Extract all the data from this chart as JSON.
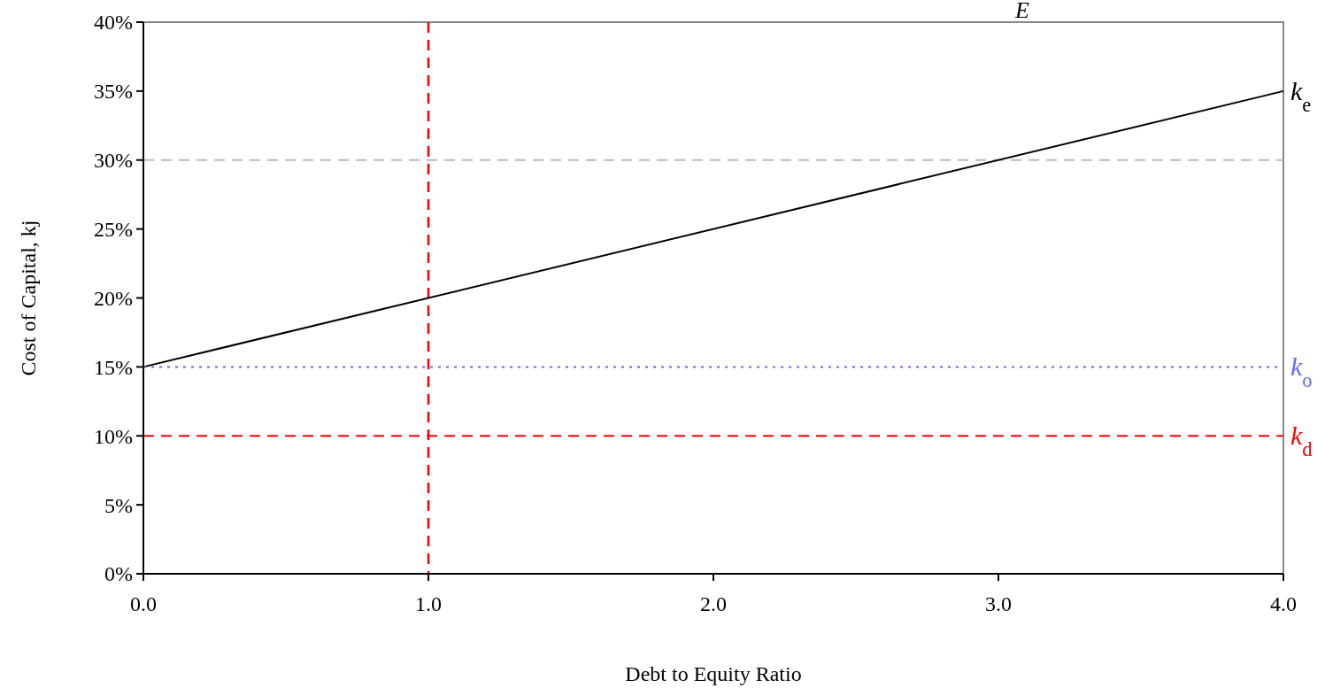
{
  "chart_data": {
    "type": "line",
    "xlabel": "Debt to Equity Ratio",
    "ylabel": "Cost of Capital, kj",
    "annotations": [
      "E"
    ],
    "xlim": [
      0,
      4
    ],
    "xticks": [
      {
        "value": 0,
        "label": "0.0"
      },
      {
        "value": 1,
        "label": "1.0"
      },
      {
        "value": 2,
        "label": "2.0"
      },
      {
        "value": 3,
        "label": "3.0"
      },
      {
        "value": 4,
        "label": "4.0"
      }
    ],
    "ylim": [
      0,
      40
    ],
    "yticks": [
      {
        "value": 0,
        "label": "0%"
      },
      {
        "value": 5,
        "label": "5%"
      },
      {
        "value": 10,
        "label": "10%"
      },
      {
        "value": 15,
        "label": "15%"
      },
      {
        "value": 20,
        "label": "20%"
      },
      {
        "value": 25,
        "label": "25%"
      },
      {
        "value": 30,
        "label": "30%"
      },
      {
        "value": 35,
        "label": "35%"
      },
      {
        "value": 40,
        "label": "40%"
      }
    ],
    "x": [
      0,
      4
    ],
    "series": [
      {
        "name": "k$_{e}$",
        "color": "#000000",
        "values": [
          15,
          35
        ],
        "line_style": "solid"
      },
      {
        "name": "k$_{o}$",
        "color": "#6666ff",
        "values": [
          15,
          15
        ],
        "line_style": "dotted"
      },
      {
        "name": "k$_{d}$",
        "color": "#ff0000",
        "values": [
          10,
          10
        ],
        "line_style": "dashed"
      }
    ],
    "ref_lines": [
      {
        "axis": "y",
        "value": 30,
        "color": "#bbbbbb",
        "line_style": "dashed"
      },
      {
        "axis": "x",
        "value": 1,
        "color": "#ff0000",
        "line_style": "dashed"
      }
    ],
    "grid": false,
    "marker": "none"
  }
}
